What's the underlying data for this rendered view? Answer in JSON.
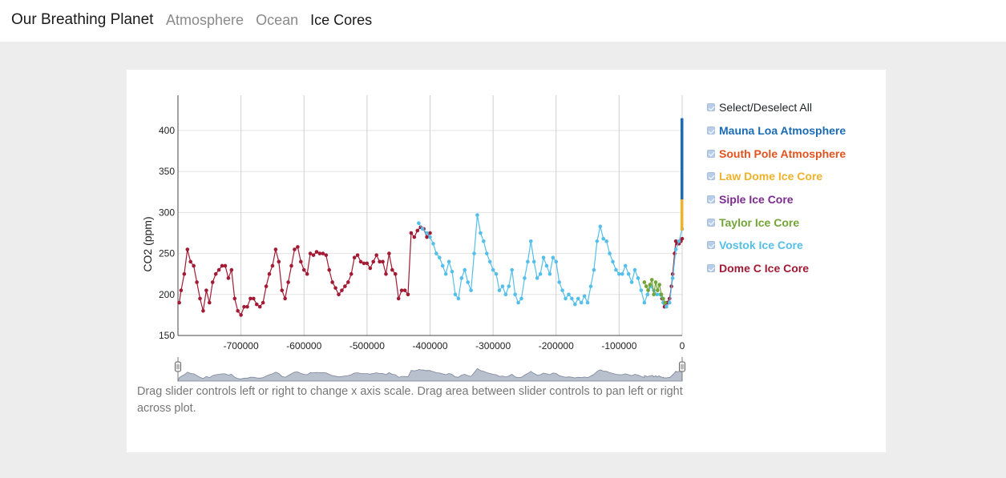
{
  "nav": {
    "brand": "Our Breathing Planet",
    "links": [
      {
        "label": "Atmosphere",
        "active": false
      },
      {
        "label": "Ocean",
        "active": false
      },
      {
        "label": "Ice Cores",
        "active": true
      }
    ]
  },
  "legend": {
    "select_all": "Select/Deselect All",
    "items": [
      {
        "label": "Mauna Loa Atmosphere",
        "color": "#1a6bb5",
        "checked": true
      },
      {
        "label": "South Pole Atmosphere",
        "color": "#e2531e",
        "checked": true
      },
      {
        "label": "Law Dome Ice Core",
        "color": "#efb229",
        "checked": true
      },
      {
        "label": "Siple Ice Core",
        "color": "#7b2c8e",
        "checked": true
      },
      {
        "label": "Taylor Ice Core",
        "color": "#72a537",
        "checked": true
      },
      {
        "label": "Vostok Ice Core",
        "color": "#55bfe9",
        "checked": true
      },
      {
        "label": "Dome C Ice Core",
        "color": "#a21a33",
        "checked": true
      }
    ]
  },
  "help_text": "Drag slider controls left or right to change x axis scale. Drag area between slider controls to pan left or right across plot.",
  "chart_data": {
    "type": "scatter",
    "ylabel": "CO2 (ppm)",
    "xlabel": "",
    "xlim": [
      -800000,
      0
    ],
    "ylim": [
      150,
      443
    ],
    "grid": true,
    "x_ticks": [
      -700000,
      -600000,
      -500000,
      -400000,
      -300000,
      -200000,
      -100000,
      0
    ],
    "x_tick_labels": [
      "-700000",
      "-600000",
      "-500000",
      "-400000",
      "-300000",
      "-200000",
      "-100000",
      "0"
    ],
    "y_ticks": [
      150,
      200,
      250,
      300,
      350,
      400
    ],
    "y_tick_labels": [
      "150",
      "200",
      "250",
      "300",
      "350",
      "400"
    ],
    "legend_position": "right",
    "series": [
      {
        "name": "Dome C Ice Core",
        "color": "#a21a33",
        "x": [
          -798000,
          -795000,
          -790000,
          -785000,
          -780000,
          -775000,
          -770000,
          -765000,
          -760000,
          -755000,
          -750000,
          -745000,
          -740000,
          -735000,
          -730000,
          -725000,
          -720000,
          -715000,
          -710000,
          -705000,
          -700000,
          -695000,
          -690000,
          -685000,
          -680000,
          -675000,
          -670000,
          -665000,
          -660000,
          -655000,
          -650000,
          -645000,
          -640000,
          -635000,
          -630000,
          -625000,
          -620000,
          -615000,
          -610000,
          -605000,
          -600000,
          -595000,
          -590000,
          -585000,
          -580000,
          -575000,
          -570000,
          -565000,
          -560000,
          -555000,
          -550000,
          -545000,
          -540000,
          -535000,
          -530000,
          -525000,
          -520000,
          -515000,
          -510000,
          -505000,
          -500000,
          -495000,
          -490000,
          -485000,
          -480000,
          -475000,
          -470000,
          -465000,
          -460000,
          -455000,
          -450000,
          -445000,
          -440000,
          -435000,
          -430000,
          -425000,
          -420000,
          -415000,
          -410000,
          -405000,
          -400000,
          -32000,
          -28000,
          -24000,
          -20000,
          -17000,
          -15000,
          -12000,
          -10000,
          -8000,
          -5000,
          -2000,
          0
        ],
        "y": [
          190,
          205,
          225,
          255,
          240,
          235,
          215,
          195,
          180,
          205,
          190,
          215,
          225,
          230,
          235,
          235,
          220,
          230,
          195,
          180,
          175,
          185,
          185,
          195,
          195,
          188,
          185,
          190,
          210,
          225,
          235,
          255,
          240,
          205,
          195,
          215,
          235,
          255,
          258,
          240,
          230,
          225,
          250,
          248,
          252,
          250,
          250,
          248,
          230,
          215,
          208,
          200,
          205,
          210,
          215,
          225,
          245,
          248,
          240,
          238,
          238,
          232,
          240,
          248,
          240,
          240,
          225,
          250,
          230,
          225,
          195,
          205,
          205,
          200,
          275,
          270,
          278,
          282,
          280,
          270,
          275,
          195,
          185,
          190,
          195,
          210,
          225,
          250,
          265,
          262,
          262,
          265,
          268
        ]
      },
      {
        "name": "Vostok Ice Core",
        "color": "#55bfe9",
        "x": [
          -418000,
          -412000,
          -405000,
          -400000,
          -395000,
          -390000,
          -385000,
          -380000,
          -375000,
          -370000,
          -365000,
          -360000,
          -355000,
          -350000,
          -345000,
          -340000,
          -335000,
          -330000,
          -325000,
          -320000,
          -315000,
          -310000,
          -305000,
          -300000,
          -295000,
          -290000,
          -285000,
          -280000,
          -275000,
          -270000,
          -265000,
          -260000,
          -255000,
          -250000,
          -245000,
          -240000,
          -235000,
          -230000,
          -225000,
          -220000,
          -215000,
          -210000,
          -205000,
          -200000,
          -195000,
          -190000,
          -185000,
          -180000,
          -175000,
          -170000,
          -165000,
          -160000,
          -155000,
          -150000,
          -145000,
          -140000,
          -135000,
          -130000,
          -125000,
          -120000,
          -115000,
          -110000,
          -105000,
          -100000,
          -95000,
          -90000,
          -85000,
          -80000,
          -75000,
          -70000,
          -65000,
          -60000,
          -55000,
          -50000,
          -45000,
          -40000,
          -35000,
          -30000,
          -25000,
          -20000,
          -15000,
          -10000,
          -5000,
          0
        ],
        "y": [
          287,
          280,
          275,
          270,
          262,
          250,
          245,
          235,
          225,
          240,
          228,
          200,
          195,
          220,
          230,
          215,
          205,
          250,
          297,
          275,
          265,
          250,
          240,
          230,
          225,
          205,
          210,
          200,
          210,
          230,
          200,
          190,
          195,
          220,
          240,
          265,
          240,
          220,
          225,
          245,
          235,
          225,
          245,
          240,
          215,
          205,
          195,
          200,
          195,
          188,
          195,
          190,
          198,
          190,
          210,
          230,
          265,
          283,
          268,
          265,
          250,
          240,
          230,
          225,
          225,
          235,
          225,
          215,
          230,
          220,
          205,
          190,
          200,
          210,
          205,
          200,
          200,
          190,
          185,
          190,
          220,
          255,
          265,
          280
        ]
      },
      {
        "name": "Taylor Ice Core",
        "color": "#72a537",
        "x": [
          -60000,
          -57000,
          -54000,
          -51000,
          -48000,
          -45000,
          -42000,
          -39000,
          -36000,
          -33000,
          -30000,
          -27000
        ],
        "y": [
          215,
          210,
          205,
          212,
          218,
          200,
          215,
          205,
          212,
          200,
          195,
          190
        ]
      },
      {
        "name": "Siple Ice Core",
        "color": "#7b2c8e",
        "x": [
          -300,
          -150,
          -50
        ],
        "y": [
          280,
          295,
          312
        ]
      },
      {
        "name": "Law Dome Ice Core",
        "color": "#efb229",
        "x": [
          -1500,
          -800,
          -200,
          0
        ],
        "y": [
          278,
          282,
          300,
          370
        ]
      },
      {
        "name": "South Pole Atmosphere",
        "color": "#e2531e",
        "x": [
          -50,
          0
        ],
        "y": [
          330,
          405
        ]
      },
      {
        "name": "Mauna Loa Atmosphere",
        "color": "#1a6bb5",
        "x": [
          -60,
          0
        ],
        "y": [
          316,
          415
        ]
      }
    ]
  }
}
